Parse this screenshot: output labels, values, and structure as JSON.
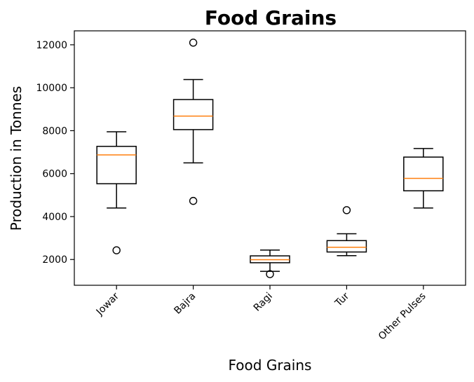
{
  "chart_data": {
    "type": "boxplot",
    "title": "Food Grains",
    "xlabel": "Food Grains",
    "ylabel": "Production in Tonnes",
    "ylim": [
      800,
      12650
    ],
    "yticks": [
      2000,
      4000,
      6000,
      8000,
      10000,
      12000
    ],
    "ytick_labels": [
      "2000",
      "4000",
      "6000",
      "8000",
      "10000",
      "12000"
    ],
    "grid": false,
    "categories": [
      "Jowar",
      "Bajra",
      "Ragi",
      "Tur",
      "Other Pulses"
    ],
    "boxes": [
      {
        "whisker_low": 4400,
        "q1": 5530,
        "median": 6870,
        "q3": 7270,
        "whisker_high": 7950,
        "outliers": [
          2430
        ]
      },
      {
        "whisker_low": 6500,
        "q1": 8050,
        "median": 8680,
        "q3": 9450,
        "whisker_high": 10380,
        "outliers": [
          4730,
          12100
        ]
      },
      {
        "whisker_low": 1450,
        "q1": 1850,
        "median": 1990,
        "q3": 2170,
        "whisker_high": 2440,
        "outliers": [
          1320
        ]
      },
      {
        "whisker_low": 2180,
        "q1": 2350,
        "median": 2570,
        "q3": 2880,
        "whisker_high": 3200,
        "outliers": [
          4300
        ]
      },
      {
        "whisker_low": 4400,
        "q1": 5200,
        "median": 5780,
        "q3": 6770,
        "whisker_high": 7170,
        "outliers": []
      }
    ],
    "colors": {
      "box": "#000000",
      "median": "#ff7f0e",
      "outlier_edge": "#000000"
    }
  }
}
